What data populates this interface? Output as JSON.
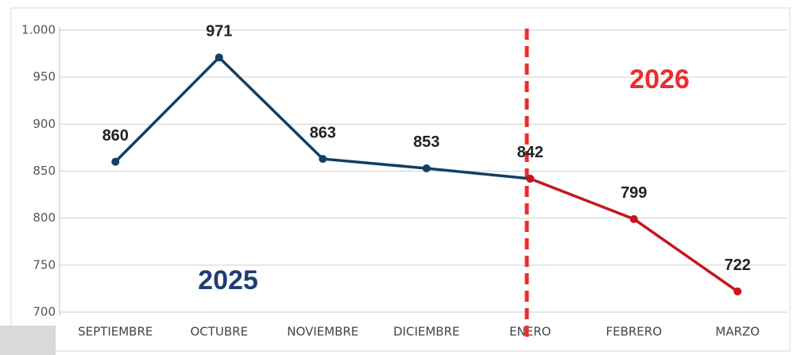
{
  "chart_data": {
    "type": "line",
    "categories": [
      "SEPTIEMBRE",
      "OCTUBRE",
      "NOVIEMBRE",
      "DICIEMBRE",
      "ENERO",
      "FEBRERO",
      "MARZO"
    ],
    "series": [
      {
        "name": "2025",
        "color": "#123f63",
        "values": [
          860,
          971,
          863,
          853,
          842,
          null,
          null
        ]
      },
      {
        "name": "2026",
        "color": "#c4161c",
        "values": [
          null,
          null,
          null,
          null,
          842,
          799,
          722
        ]
      }
    ],
    "ylim": [
      700,
      1000
    ],
    "yticks": [
      700,
      750,
      800,
      850,
      900,
      950,
      {
        "value": 1000,
        "label": "1.000"
      }
    ],
    "grid": true
  }
}
